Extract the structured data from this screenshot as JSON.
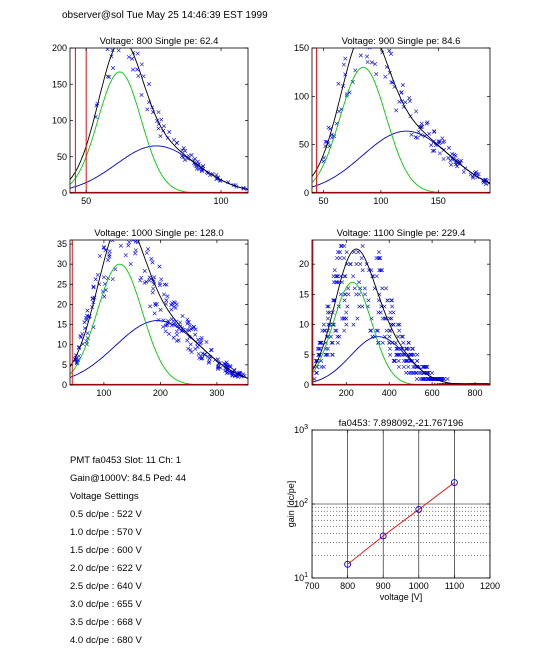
{
  "header": {
    "text": "observer@sol  Tue May 25 14:46:39 EST 1999"
  },
  "colors": {
    "data": "#0000ff",
    "fit": "#000000",
    "peak": "#00cc00",
    "wide": "#0000cc",
    "pedestal": "#ff0000",
    "gainline": "#ff0000",
    "gainmark": "#0000ff"
  },
  "info": {
    "pmt": "PMT fa0453 Slot: 11 Ch: 1",
    "gain": "Gain@1000V: 84.5 Ped: 44",
    "settings_title": "Voltage Settings",
    "settings": [
      "0.5 dc/pe : 522 V",
      "1.0 dc/pe : 570 V",
      "1.5 dc/pe : 600 V",
      "2.0 dc/pe : 622 V",
      "2.5 dc/pe : 640 V",
      "3.0 dc/pe : 655 V",
      "3.5 dc/pe : 668 V",
      "4.0 dc/pe : 680 V"
    ]
  },
  "chart_data": [
    {
      "type": "scatter",
      "title": "Voltage: 800 Single pe: 62.4",
      "xlim": [
        44,
        110
      ],
      "ylim": [
        0,
        200
      ],
      "xticks": [
        50,
        100
      ],
      "yticks": [
        0,
        50,
        100,
        150,
        200
      ],
      "fit": {
        "mu1": 62.4,
        "s1": 8,
        "a1": 167,
        "mu2": 76,
        "s2": 15,
        "a2": 65
      },
      "pedestal": [
        46,
        50
      ],
      "data": {
        "xmin": 53,
        "xmax": 110,
        "n": 90,
        "noise": 0.1
      }
    },
    {
      "type": "scatter",
      "title": "Voltage: 900 Single pe: 84.6",
      "xlim": [
        40,
        195
      ],
      "ylim": [
        0,
        150
      ],
      "xticks": [
        50,
        100,
        150
      ],
      "yticks": [
        0,
        50,
        100,
        150
      ],
      "fit": {
        "mu1": 84.6,
        "s1": 20,
        "a1": 130,
        "mu2": 122,
        "s2": 38,
        "a2": 64
      },
      "pedestal": [
        44
      ],
      "data": {
        "xmin": 48,
        "xmax": 195,
        "n": 140,
        "noise": 0.15
      }
    },
    {
      "type": "scatter",
      "title": "Voltage: 1000 Single pe: 128.0",
      "xlim": [
        40,
        355
      ],
      "ylim": [
        0,
        36
      ],
      "xticks": [
        100,
        200,
        300
      ],
      "yticks": [
        0,
        5,
        10,
        15,
        20,
        25,
        30,
        35
      ],
      "fit": {
        "mu1": 128,
        "s1": 40,
        "a1": 30,
        "mu2": 195,
        "s2": 75,
        "a2": 16
      },
      "pedestal": [
        44
      ],
      "data": {
        "xmin": 48,
        "xmax": 350,
        "n": 260,
        "noise": 0.2
      }
    },
    {
      "type": "scatter",
      "title": "Voltage: 1100 Single pe: 229.4",
      "xlim": [
        40,
        870
      ],
      "ylim": [
        0,
        24
      ],
      "xticks": [
        200,
        400,
        600,
        800
      ],
      "yticks": [
        0,
        5,
        10,
        15,
        20
      ],
      "fit": {
        "mu1": 229,
        "s1": 90,
        "a1": 17,
        "mu2": 350,
        "s2": 130,
        "a2": 8
      },
      "pedestal": [
        44
      ],
      "data": {
        "xmin": 48,
        "xmax": 865,
        "n": 480,
        "noise": 0.35,
        "quantize": 1
      }
    },
    {
      "type": "line",
      "title": "fa0453: 7.898092,-21.767196",
      "xlabel": "voltage [V]",
      "ylabel": "gain [dc/pe]",
      "xlim": [
        700,
        1200
      ],
      "ylim": [
        10,
        1000
      ],
      "yscale": "log",
      "xticks": [
        700,
        800,
        900,
        1000,
        1100,
        1200
      ],
      "yticks": [
        10,
        100,
        1000
      ],
      "grid": true,
      "x": [
        800,
        900,
        1000,
        1100
      ],
      "y": [
        15.3,
        37.0,
        84.5,
        195.0
      ]
    }
  ]
}
